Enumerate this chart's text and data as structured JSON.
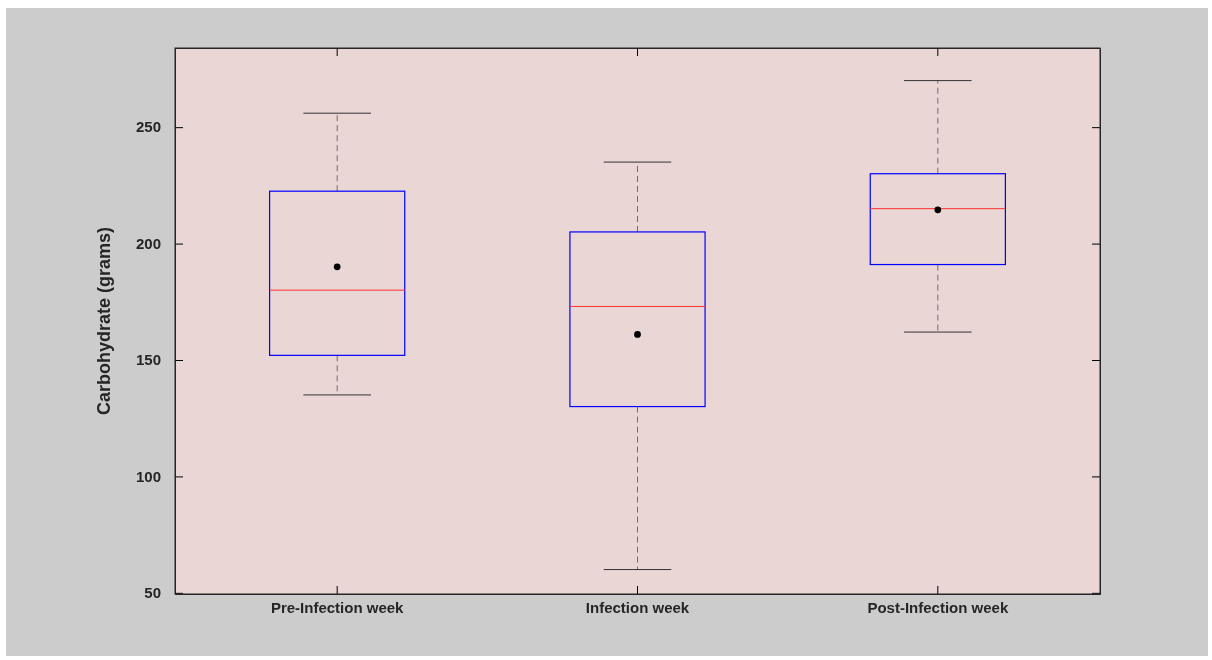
{
  "chart_data": {
    "type": "box",
    "ylabel": "Carbohydrate (grams)",
    "categories": [
      "Pre-Infection week",
      "Infection week",
      "Post-Infection week"
    ],
    "color": "#0000ff",
    "boxes": [
      {
        "low": 135,
        "q1": 152,
        "median": 180,
        "q3": 222.5,
        "high": 256,
        "mean": 190
      },
      {
        "low": 60,
        "q1": 130,
        "median": 173,
        "q3": 205,
        "high": 235,
        "mean": 161
      },
      {
        "low": 162,
        "q1": 191,
        "median": 215,
        "q3": 230,
        "high": 270,
        "mean": 214.5
      }
    ],
    "ylim": [
      49.5,
      284
    ],
    "yticks": [
      50,
      100,
      150,
      200,
      250
    ],
    "grid": false
  }
}
